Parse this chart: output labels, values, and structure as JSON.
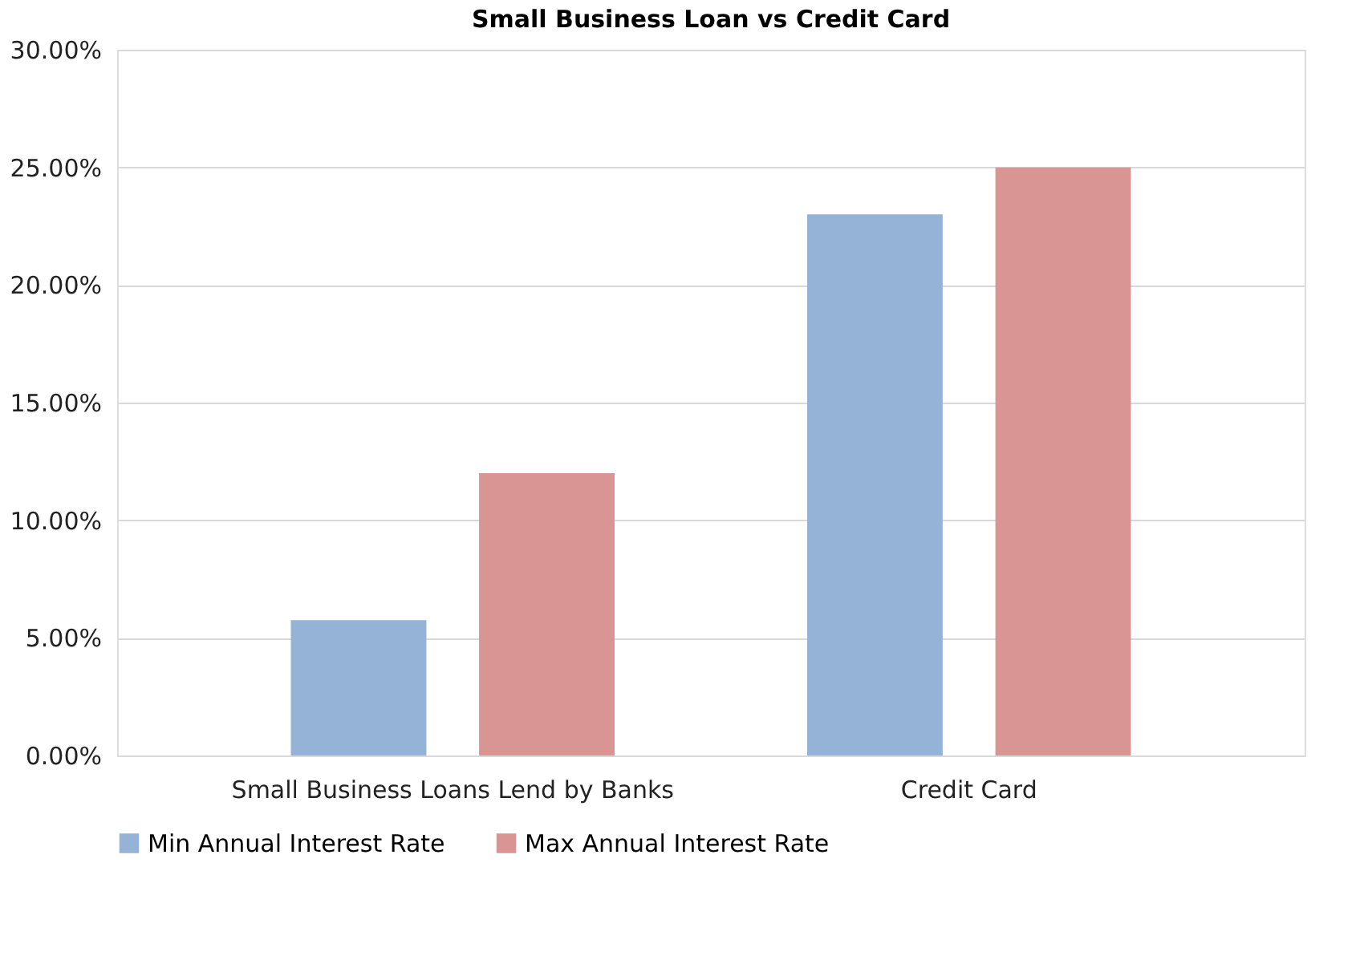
{
  "chart_data": {
    "type": "bar",
    "title": "Small Business Loan vs Credit Card",
    "categories": [
      "Small Business Loans Lend by Banks",
      "Credit Card"
    ],
    "series": [
      {
        "name": "Min Annual Interest Rate",
        "color": "#95b3d7",
        "values": [
          5.75,
          23
        ]
      },
      {
        "name": "Max Annual Interest Rate",
        "color": "#d99594",
        "values": [
          12,
          25
        ]
      }
    ],
    "ylim": [
      0,
      30
    ],
    "yticks": [
      {
        "value": 0,
        "label": "0.00%"
      },
      {
        "value": 5,
        "label": "5.00%"
      },
      {
        "value": 10,
        "label": "10.00%"
      },
      {
        "value": 15,
        "label": "15.00%"
      },
      {
        "value": 20,
        "label": "20.00%"
      },
      {
        "value": 25,
        "label": "25.00%"
      },
      {
        "value": 30,
        "label": "30.00%"
      }
    ],
    "grid": "y",
    "legend": "bottom"
  }
}
